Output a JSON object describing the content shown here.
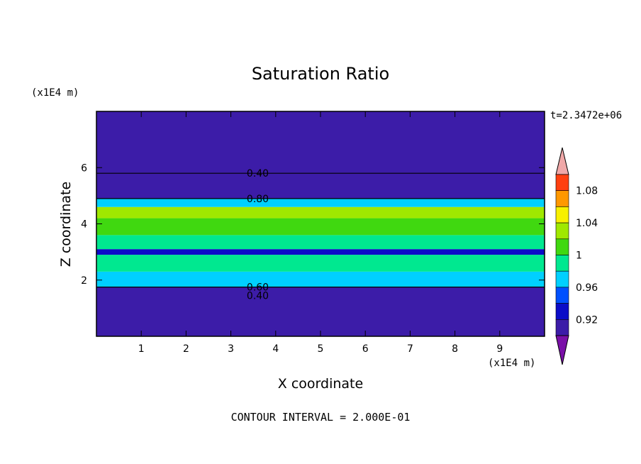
{
  "chart_data": {
    "type": "heatmap",
    "title": "Saturation Ratio",
    "xlabel": "X coordinate",
    "ylabel": "Z coordinate",
    "x_unit_label": "(x1E4 m)",
    "y_unit_label": "(x1E4 m)",
    "time_label": "t=2.3472e+06",
    "footer": "CONTOUR INTERVAL = 2.000E-01",
    "xlim": [
      0,
      10
    ],
    "ylim": [
      0,
      8
    ],
    "x_ticks": [
      "1",
      "2",
      "3",
      "4",
      "5",
      "6",
      "7",
      "8",
      "9"
    ],
    "y_ticks": [
      "2",
      "4",
      "6"
    ],
    "contour_labels": [
      "0.40",
      "0.80",
      "0.60",
      "0.40"
    ],
    "colorbar": {
      "tick_labels": [
        "0.92",
        "0.96",
        "1",
        "1.04",
        "1.08"
      ],
      "levels": [
        0.9,
        0.92,
        0.94,
        0.96,
        0.98,
        1.0,
        1.02,
        1.04,
        1.06,
        1.08,
        1.1
      ],
      "colors": [
        "#7a10a8",
        "#3c1ca8",
        "#0c0cc8",
        "#0050ff",
        "#00d0ff",
        "#00e890",
        "#40d810",
        "#a0e800",
        "#f8f000",
        "#ff9800",
        "#ff4010",
        "#f0a8a8"
      ]
    },
    "bands": [
      {
        "z": [
          0.0,
          1.75
        ],
        "level": 0.9
      },
      {
        "z": [
          1.75,
          2.3
        ],
        "level": 0.97
      },
      {
        "z": [
          2.3,
          2.9
        ],
        "level": 0.99
      },
      {
        "z": [
          2.9,
          3.1
        ],
        "level": 0.92
      },
      {
        "z": [
          3.1,
          3.6
        ],
        "level": 0.99
      },
      {
        "z": [
          3.6,
          4.2
        ],
        "level": 1.01
      },
      {
        "z": [
          4.2,
          4.6
        ],
        "level": 1.03
      },
      {
        "z": [
          4.6,
          4.9
        ],
        "level": 0.97
      },
      {
        "z": [
          4.9,
          8.0
        ],
        "level": 0.9
      }
    ]
  }
}
